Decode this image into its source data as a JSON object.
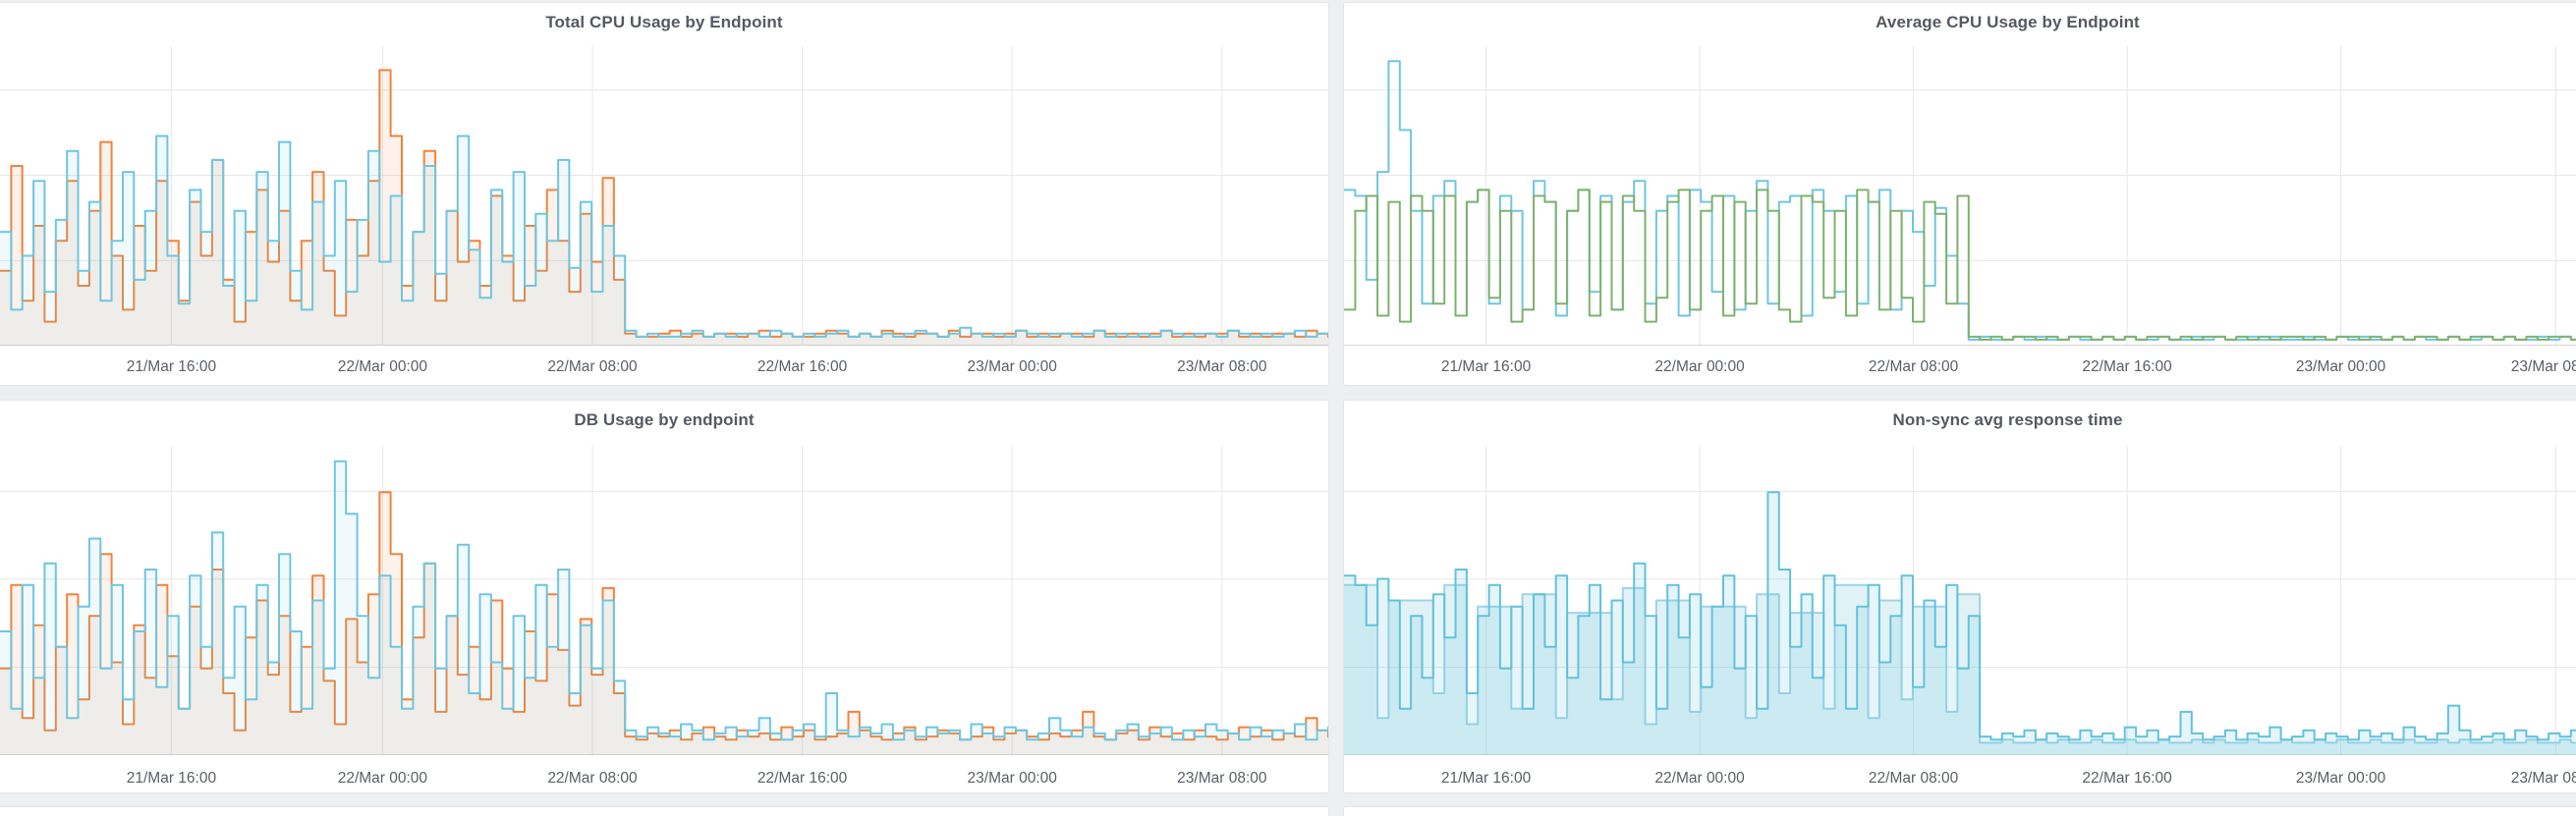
{
  "dashboard": {
    "theme": "light",
    "background_color": "#edf0f3",
    "panel_background": "#ffffff",
    "grid_color": "#e7e7e7",
    "axis_line_color": "#d9d9d9",
    "title_color": "#555962",
    "tick_label_color": "#5a5f66"
  },
  "chart_data": [
    {
      "type": "line",
      "title": "Total CPU Usage by Endpoint",
      "xlabel": "",
      "ylabel": "",
      "y_axis_labels_visible": false,
      "values_unit": "percent of plot height (y-axis labels not visible in crop)",
      "ylim": [
        0,
        100
      ],
      "grid": true,
      "legend_position": "none",
      "x_tick_labels": [
        "21/Mar 16:00",
        "22/Mar 00:00",
        "22/Mar 08:00",
        "22/Mar 16:00",
        "23/Mar 00:00",
        "23/Mar 08:00"
      ],
      "x_tick_positions": [
        0.129,
        0.288,
        0.446,
        0.604,
        0.762,
        0.92
      ],
      "series": [
        {
          "name": "orange",
          "color": "#EF843C",
          "fill_opacity": 0.1,
          "values": [
            25,
            60,
            15,
            40,
            8,
            35,
            55,
            20,
            45,
            68,
            30,
            12,
            40,
            25,
            55,
            35,
            15,
            48,
            30,
            62,
            22,
            8,
            38,
            52,
            28,
            45,
            15,
            35,
            58,
            25,
            10,
            42,
            30,
            55,
            92,
            70,
            20,
            38,
            65,
            15,
            45,
            28,
            35,
            20,
            50,
            30,
            15,
            40,
            25,
            52,
            35,
            18,
            44,
            28,
            56,
            22,
            4,
            3,
            3,
            4,
            5,
            3,
            4,
            3,
            4,
            4,
            3,
            4,
            5,
            3,
            4,
            3,
            3,
            4,
            5,
            4,
            3,
            4,
            3,
            5,
            4,
            3,
            4,
            4,
            3,
            5,
            3,
            4,
            4,
            3,
            4,
            5,
            3,
            4,
            3,
            4,
            4,
            3,
            5,
            4,
            3,
            4,
            3,
            4,
            5,
            3,
            4,
            3,
            4,
            4,
            5,
            3,
            4,
            3,
            4,
            4,
            3,
            5,
            4,
            3
          ]
        },
        {
          "name": "light-blue",
          "color": "#6EC6E0",
          "fill_opacity": 0.1,
          "values": [
            38,
            12,
            30,
            55,
            18,
            42,
            65,
            25,
            48,
            15,
            35,
            58,
            22,
            45,
            70,
            30,
            14,
            52,
            38,
            62,
            20,
            45,
            15,
            58,
            35,
            68,
            25,
            12,
            48,
            30,
            55,
            18,
            42,
            65,
            28,
            50,
            15,
            38,
            60,
            24,
            45,
            70,
            32,
            16,
            52,
            28,
            58,
            20,
            44,
            35,
            62,
            26,
            48,
            18,
            40,
            30,
            5,
            3,
            4,
            3,
            3,
            4,
            5,
            3,
            4,
            3,
            4,
            4,
            3,
            5,
            4,
            3,
            4,
            3,
            4,
            5,
            3,
            4,
            3,
            4,
            3,
            4,
            5,
            4,
            3,
            4,
            6,
            4,
            3,
            4,
            3,
            5,
            4,
            3,
            4,
            4,
            3,
            4,
            5,
            3,
            4,
            3,
            4,
            3,
            5,
            4,
            3,
            4,
            4,
            3,
            5,
            4,
            3,
            4,
            3,
            4,
            5,
            3,
            4,
            4
          ]
        }
      ]
    },
    {
      "type": "line",
      "title": "Average CPU Usage by Endpoint",
      "xlabel": "",
      "ylabel": "",
      "y_axis_labels_visible": false,
      "values_unit": "percent of plot height (y-axis labels not visible in crop)",
      "ylim": [
        0,
        100
      ],
      "grid": true,
      "legend_position": "none",
      "x_tick_labels": [
        "21/Mar 16:00",
        "22/Mar 00:00",
        "22/Mar 08:00",
        "22/Mar 16:00",
        "23/Mar 00:00",
        "23/Mar 08:00"
      ],
      "x_tick_positions": [
        0.107,
        0.268,
        0.429,
        0.59,
        0.751,
        0.913
      ],
      "series": [
        {
          "name": "light-blue",
          "color": "#6EC6E0",
          "fill_opacity": 0,
          "values": [
            52,
            50,
            22,
            58,
            95,
            72,
            45,
            14,
            50,
            55,
            10,
            48,
            52,
            14,
            50,
            45,
            12,
            55,
            48,
            10,
            45,
            52,
            18,
            50,
            12,
            48,
            55,
            14,
            45,
            50,
            10,
            52,
            48,
            18,
            50,
            12,
            45,
            55,
            14,
            48,
            50,
            10,
            52,
            45,
            18,
            50,
            14,
            48,
            52,
            12,
            45,
            38,
            20,
            46,
            30,
            14,
            2,
            3,
            2,
            2,
            3,
            2,
            3,
            2,
            2,
            3,
            2,
            2,
            3,
            2,
            3,
            2,
            2,
            3,
            2,
            2,
            3,
            2,
            3,
            2,
            2,
            3,
            2,
            3,
            2,
            2,
            3,
            2,
            2,
            3,
            2,
            3,
            2,
            2,
            3,
            2,
            3,
            2,
            2,
            3,
            2,
            2,
            3,
            2,
            3,
            2,
            2,
            3,
            2,
            3,
            2,
            2,
            3,
            2,
            2,
            3,
            2,
            3,
            2,
            2
          ]
        },
        {
          "name": "green",
          "color": "#7EB26D",
          "fill_opacity": 0,
          "values": [
            12,
            45,
            50,
            10,
            48,
            8,
            50,
            45,
            14,
            50,
            10,
            48,
            52,
            16,
            45,
            8,
            12,
            50,
            48,
            14,
            45,
            52,
            10,
            48,
            12,
            50,
            45,
            8,
            16,
            48,
            52,
            12,
            45,
            50,
            10,
            48,
            14,
            52,
            45,
            12,
            8,
            50,
            48,
            16,
            45,
            10,
            52,
            48,
            12,
            45,
            16,
            8,
            48,
            44,
            14,
            50,
            3,
            2,
            3,
            2,
            3,
            3,
            2,
            3,
            2,
            3,
            3,
            2,
            3,
            2,
            3,
            2,
            3,
            3,
            2,
            3,
            2,
            3,
            3,
            2,
            3,
            2,
            3,
            2,
            3,
            3,
            2,
            3,
            2,
            3,
            3,
            2,
            3,
            2,
            3,
            2,
            3,
            3,
            2,
            3,
            2,
            3,
            3,
            2,
            3,
            2,
            3,
            2,
            3,
            3,
            2,
            3,
            2,
            3,
            3,
            2,
            3,
            2,
            3,
            3
          ]
        }
      ]
    },
    {
      "type": "line",
      "title": "DB Usage by endpoint",
      "xlabel": "",
      "ylabel": "",
      "y_axis_labels_visible": false,
      "values_unit": "percent of plot height (y-axis labels not visible in crop)",
      "ylim": [
        0,
        100
      ],
      "grid": true,
      "legend_position": "none",
      "x_tick_labels": [
        "21/Mar 16:00",
        "22/Mar 00:00",
        "22/Mar 08:00",
        "22/Mar 16:00",
        "23/Mar 00:00",
        "23/Mar 08:00"
      ],
      "x_tick_positions": [
        0.129,
        0.288,
        0.446,
        0.604,
        0.762,
        0.92
      ],
      "series": [
        {
          "name": "orange",
          "color": "#EF843C",
          "fill_opacity": 0.1,
          "values": [
            28,
            55,
            12,
            42,
            8,
            35,
            52,
            18,
            45,
            65,
            30,
            10,
            42,
            25,
            55,
            32,
            15,
            48,
            28,
            60,
            20,
            8,
            38,
            50,
            26,
            45,
            14,
            35,
            58,
            24,
            10,
            44,
            30,
            52,
            85,
            65,
            18,
            38,
            62,
            14,
            45,
            26,
            35,
            18,
            50,
            28,
            14,
            40,
            24,
            52,
            34,
            16,
            44,
            26,
            54,
            20,
            6,
            5,
            7,
            6,
            8,
            5,
            7,
            9,
            6,
            5,
            8,
            6,
            7,
            5,
            9,
            6,
            8,
            5,
            6,
            7,
            14,
            8,
            6,
            5,
            7,
            9,
            5,
            6,
            8,
            7,
            5,
            6,
            9,
            5,
            7,
            8,
            6,
            5,
            7,
            6,
            8,
            14,
            6,
            5,
            7,
            8,
            5,
            9,
            6,
            7,
            5,
            8,
            6,
            5,
            7,
            9,
            6,
            8,
            5,
            7,
            6,
            12,
            8,
            6
          ]
        },
        {
          "name": "light-blue",
          "color": "#6EC6E0",
          "fill_opacity": 0.1,
          "values": [
            40,
            15,
            55,
            25,
            62,
            35,
            12,
            48,
            70,
            28,
            55,
            18,
            40,
            60,
            22,
            45,
            15,
            58,
            35,
            72,
            25,
            48,
            18,
            55,
            30,
            65,
            40,
            15,
            50,
            28,
            95,
            78,
            45,
            25,
            58,
            35,
            15,
            48,
            62,
            28,
            45,
            68,
            20,
            52,
            30,
            15,
            45,
            25,
            55,
            35,
            60,
            20,
            42,
            28,
            50,
            24,
            8,
            6,
            9,
            7,
            6,
            10,
            8,
            5,
            7,
            9,
            6,
            8,
            12,
            7,
            5,
            8,
            10,
            6,
            20,
            8,
            6,
            9,
            7,
            10,
            5,
            8,
            6,
            9,
            7,
            8,
            5,
            10,
            7,
            6,
            9,
            8,
            5,
            7,
            12,
            8,
            6,
            9,
            7,
            5,
            8,
            10,
            6,
            7,
            9,
            5,
            8,
            6,
            10,
            8,
            7,
            5,
            9,
            6,
            8,
            7,
            10,
            5,
            8,
            9
          ]
        }
      ]
    },
    {
      "type": "line",
      "title": "Non-sync avg response time",
      "xlabel": "",
      "ylabel": "",
      "y_axis_labels_visible": false,
      "values_unit": "percent of plot height (y-axis labels not visible in crop)",
      "ylim": [
        0,
        100
      ],
      "grid": true,
      "legend_position": "none",
      "x_tick_labels": [
        "21/Mar 16:00",
        "22/Mar 00:00",
        "22/Mar 08:00",
        "22/Mar 16:00",
        "23/Mar 00:00",
        "23/Mar 08:00"
      ],
      "x_tick_positions": [
        0.107,
        0.268,
        0.429,
        0.59,
        0.751,
        0.913
      ],
      "series": [
        {
          "name": "light-blue-secondary",
          "color": "#9BD4E6",
          "fill_opacity": 0.3,
          "values": [
            55,
            55,
            55,
            12,
            50,
            50,
            50,
            50,
            20,
            55,
            55,
            10,
            48,
            48,
            48,
            15,
            52,
            52,
            52,
            12,
            46,
            46,
            46,
            46,
            18,
            54,
            54,
            10,
            50,
            50,
            50,
            14,
            48,
            48,
            48,
            48,
            12,
            52,
            52,
            20,
            46,
            46,
            46,
            15,
            55,
            55,
            55,
            12,
            50,
            50,
            18,
            48,
            48,
            48,
            14,
            52,
            52,
            4,
            4,
            5,
            4,
            4,
            5,
            4,
            5,
            4,
            4,
            5,
            4,
            4,
            5,
            4,
            4,
            5,
            4,
            4,
            5,
            4,
            5,
            4,
            4,
            5,
            4,
            4,
            5,
            4,
            4,
            5,
            4,
            5,
            4,
            4,
            5,
            4,
            4,
            5,
            4,
            4,
            5,
            4,
            5,
            4,
            4,
            5,
            4,
            4,
            5,
            4,
            4,
            5,
            4,
            5,
            4,
            4,
            5,
            4,
            4,
            5,
            4,
            4
          ]
        },
        {
          "name": "light-blue-main",
          "color": "#62C2DC",
          "fill_opacity": 0.16,
          "values": [
            58,
            55,
            42,
            57,
            50,
            15,
            45,
            25,
            52,
            38,
            60,
            20,
            45,
            55,
            28,
            48,
            15,
            52,
            35,
            58,
            25,
            45,
            55,
            18,
            50,
            30,
            62,
            45,
            15,
            55,
            38,
            52,
            22,
            48,
            58,
            28,
            45,
            15,
            85,
            60,
            35,
            52,
            25,
            58,
            42,
            15,
            48,
            55,
            30,
            45,
            58,
            22,
            50,
            35,
            55,
            28,
            45,
            6,
            5,
            7,
            6,
            8,
            5,
            7,
            6,
            5,
            8,
            6,
            7,
            5,
            9,
            6,
            8,
            5,
            6,
            14,
            7,
            5,
            6,
            8,
            5,
            7,
            6,
            9,
            5,
            6,
            8,
            5,
            7,
            6,
            5,
            8,
            6,
            7,
            5,
            9,
            6,
            5,
            7,
            16,
            8,
            5,
            6,
            7,
            5,
            8,
            6,
            5,
            7,
            6,
            8,
            5,
            6,
            7,
            5,
            8,
            6,
            5,
            7,
            6
          ]
        }
      ]
    }
  ],
  "next_row": {
    "note": "top edge of next dashboard row visible at bottom of crop"
  }
}
